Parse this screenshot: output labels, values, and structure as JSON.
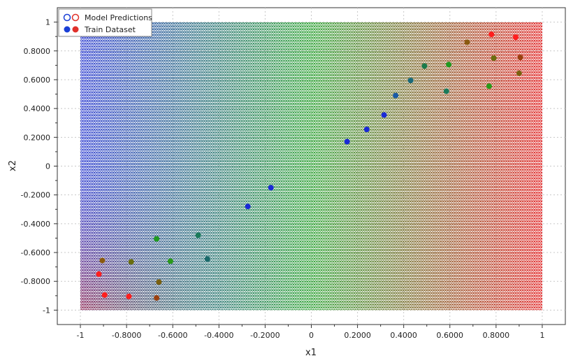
{
  "chart_data": {
    "type": "scatter",
    "title": "",
    "xlabel": "x1",
    "ylabel": "x2",
    "xlim": [
      -1.1,
      1.1
    ],
    "ylim": [
      -1.1,
      1.1
    ],
    "grid": true,
    "legend_position": "top-left",
    "x_ticks": [
      -1,
      -0.8,
      -0.6,
      -0.4,
      -0.2,
      0,
      0.2,
      0.4,
      0.6,
      0.8,
      1
    ],
    "x_tick_labels": [
      "-1",
      "-0.8000",
      "-0.6000",
      "-0.4000",
      "-0.2000",
      "0",
      "0.2000",
      "0.4000",
      "0.6000",
      "0.8000",
      "1"
    ],
    "y_ticks": [
      -1,
      -0.8,
      -0.6,
      -0.4,
      -0.2,
      0,
      0.2,
      0.4,
      0.6,
      0.8,
      1
    ],
    "y_tick_labels": [
      "-1",
      "-0.8000",
      "-0.6000",
      "-0.4000",
      "-0.2000",
      "0",
      "0.2000",
      "0.4000",
      "0.6000",
      "0.8000",
      "1"
    ],
    "prediction_grid": {
      "x_range": [
        -1,
        1
      ],
      "y_range": [
        -1,
        1
      ],
      "color_rule": "red = |x1*x2| high, blue = low, green = mid",
      "marker": "hollow circle"
    },
    "series": [
      {
        "name": "Model Predictions",
        "marker": "hollow",
        "legend_colors": [
          "#1a3fd6",
          "#e0302a"
        ]
      },
      {
        "name": "Train Dataset",
        "marker": "filled",
        "legend_colors": [
          "#1a3fd6",
          "#e0302a"
        ],
        "points": [
          {
            "x": -0.92,
            "y": -0.75,
            "c": "#ff1e1e"
          },
          {
            "x": -0.905,
            "y": -0.655,
            "c": "#8a5a10"
          },
          {
            "x": -0.895,
            "y": -0.895,
            "c": "#ff1e1e"
          },
          {
            "x": -0.79,
            "y": -0.905,
            "c": "#ff1e1e"
          },
          {
            "x": -0.78,
            "y": -0.665,
            "c": "#6a6e10"
          },
          {
            "x": -0.67,
            "y": -0.915,
            "c": "#9a4010"
          },
          {
            "x": -0.67,
            "y": -0.505,
            "c": "#209a20"
          },
          {
            "x": -0.66,
            "y": -0.805,
            "c": "#7a6010"
          },
          {
            "x": -0.61,
            "y": -0.66,
            "c": "#2a9a1a"
          },
          {
            "x": -0.49,
            "y": -0.48,
            "c": "#1a7a5a"
          },
          {
            "x": -0.45,
            "y": -0.645,
            "c": "#1a6a6a"
          },
          {
            "x": -0.275,
            "y": -0.28,
            "c": "#1a2ad6"
          },
          {
            "x": -0.175,
            "y": -0.15,
            "c": "#1a2ad6"
          },
          {
            "x": 0.155,
            "y": 0.17,
            "c": "#1a2ad6"
          },
          {
            "x": 0.24,
            "y": 0.255,
            "c": "#1a2ad6"
          },
          {
            "x": 0.315,
            "y": 0.355,
            "c": "#1a2ad6"
          },
          {
            "x": 0.365,
            "y": 0.49,
            "c": "#1a5aa6"
          },
          {
            "x": 0.43,
            "y": 0.595,
            "c": "#1a6a7a"
          },
          {
            "x": 0.49,
            "y": 0.695,
            "c": "#1a7a4a"
          },
          {
            "x": 0.585,
            "y": 0.52,
            "c": "#1a7a5a"
          },
          {
            "x": 0.595,
            "y": 0.705,
            "c": "#209a20"
          },
          {
            "x": 0.675,
            "y": 0.86,
            "c": "#8a5a10"
          },
          {
            "x": 0.77,
            "y": 0.555,
            "c": "#2a9a1a"
          },
          {
            "x": 0.78,
            "y": 0.915,
            "c": "#ff1e1e"
          },
          {
            "x": 0.79,
            "y": 0.75,
            "c": "#6a6e10"
          },
          {
            "x": 0.885,
            "y": 0.895,
            "c": "#ff1e1e"
          },
          {
            "x": 0.9,
            "y": 0.645,
            "c": "#7a6010"
          },
          {
            "x": 0.905,
            "y": 0.755,
            "c": "#9a4010"
          }
        ]
      }
    ]
  }
}
